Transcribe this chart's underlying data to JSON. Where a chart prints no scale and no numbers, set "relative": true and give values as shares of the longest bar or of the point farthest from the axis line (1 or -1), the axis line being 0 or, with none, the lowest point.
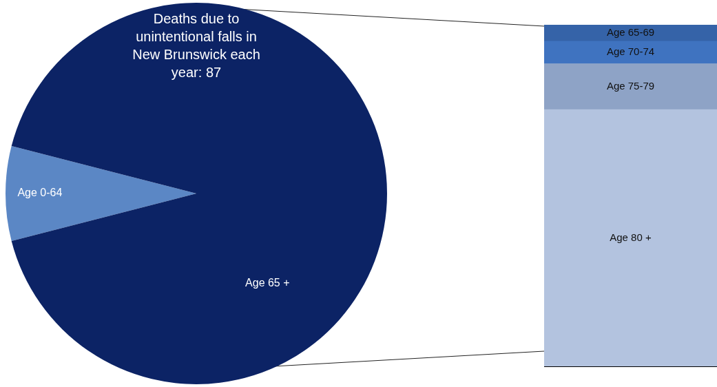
{
  "chart_data": [
    {
      "type": "pie",
      "title": "Deaths due to unintentional falls in New Brunswick each year: 87",
      "categories": [
        "Age 0-64",
        "Age 65 +"
      ],
      "values": [
        8,
        92
      ],
      "colors": [
        "#5b87c5",
        "#0c2365"
      ],
      "legend": false
    },
    {
      "type": "bar",
      "relative": true,
      "stacked": true,
      "categories": [
        null
      ],
      "legend": false,
      "series": [
        {
          "name": "Age 80 +",
          "color": "#b3c3df",
          "values": [
            0.752
          ]
        },
        {
          "name": "Age 75-79",
          "color": "#8ea3c6",
          "values": [
            0.134
          ]
        },
        {
          "name": "Age 70-74",
          "color": "#3f73c0",
          "values": [
            0.066
          ]
        },
        {
          "name": "Age 65-69",
          "color": "#3563a8",
          "values": [
            0.048
          ]
        }
      ]
    }
  ]
}
